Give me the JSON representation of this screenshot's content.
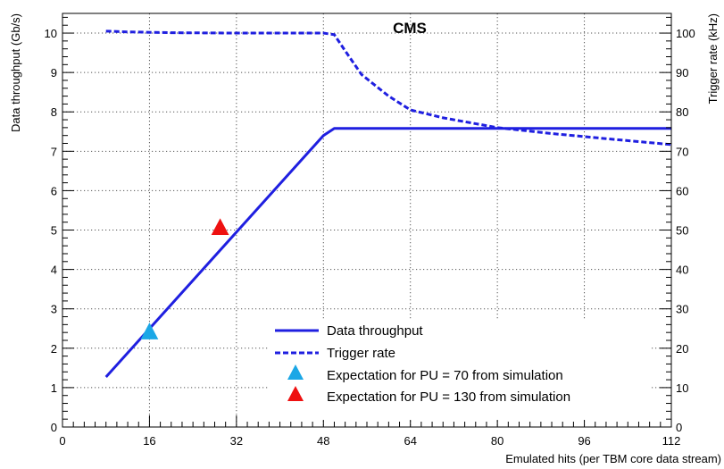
{
  "chart_data": {
    "type": "line",
    "title": "CMS",
    "xlabel": "Emulated hits (per TBM core data stream)",
    "ylabel": "Data throughput (Gb/s)",
    "y2label": "Trigger rate (kHz)",
    "xlim": [
      0,
      112
    ],
    "ylim": [
      0,
      10.5
    ],
    "y2lim": [
      0,
      105
    ],
    "x_ticks": [
      0,
      16,
      32,
      48,
      64,
      80,
      96,
      112
    ],
    "y_ticks": [
      0,
      1,
      2,
      3,
      4,
      5,
      6,
      7,
      8,
      9,
      10
    ],
    "y2_ticks": [
      0,
      10,
      20,
      30,
      40,
      50,
      60,
      70,
      80,
      90,
      100
    ],
    "grid": true,
    "legend_position": "bottom-right",
    "colors": {
      "series_line": "#1f1fe0",
      "pu70_marker": "#1ba7e6",
      "pu130_marker": "#ee1111"
    },
    "series": [
      {
        "name": "Data throughput",
        "style": "solid",
        "axis": "left",
        "x": [
          8,
          48,
          50,
          112
        ],
        "y": [
          1.27,
          7.4,
          7.58,
          7.58
        ]
      },
      {
        "name": "Trigger rate",
        "style": "dashed",
        "axis": "right",
        "x": [
          8,
          12,
          20,
          32,
          40,
          48,
          50,
          52,
          55,
          60,
          64,
          70,
          80,
          90,
          100,
          112
        ],
        "y": [
          100.5,
          100.3,
          100.1,
          100.0,
          100.0,
          100.0,
          99.6,
          95.5,
          89.5,
          84.0,
          80.5,
          78.5,
          76.0,
          74.5,
          73.2,
          71.7
        ]
      }
    ],
    "points": [
      {
        "name": "Expectation for PU = 70 from simulation",
        "x": 16,
        "y": 2.4,
        "marker": "triangle"
      },
      {
        "name": "Expectation for PU = 130 from simulation",
        "x": 29,
        "y": 5.05,
        "marker": "triangle"
      }
    ]
  }
}
